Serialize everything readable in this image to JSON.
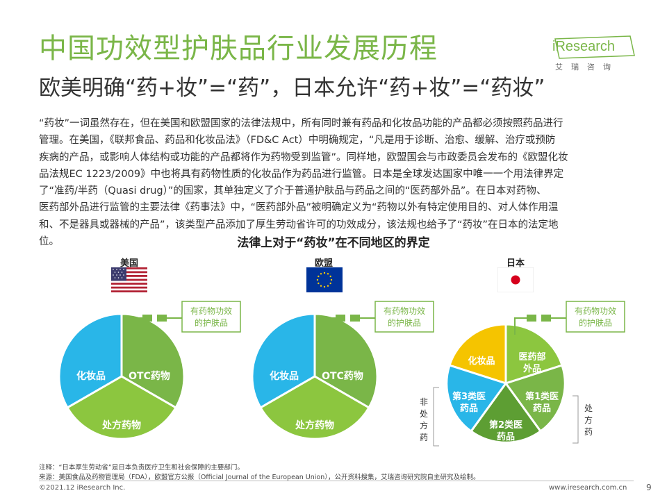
{
  "title": "中国功效型护肤品行业发展历程",
  "subtitle": "欧美明确“药+妆”=“药”，日本允许“药+妆”=“药妆”",
  "logo": {
    "brand": "iResearch",
    "cn": "艾瑞咨询"
  },
  "body_lines": [
    "“药妆”一词虽然存在，但在美国和欧盟国家的法律法规中，所有同时兼有药品和化妆品功能的产品都必须按照药品进行",
    "管理。在美国，《联邦食品、药品和化妆品法》（FD&C Act）中明确规定，“凡是用于诊断、治愈、缓解、治疗或预防",
    "疾病的产品，或影响人体结构或功能的产品都将作为药物受到监管”。同样地，欧盟国会与市政委员会发布的《欧盟化妆",
    "品法规EC 1223/2009》中也将具有药物性质的化妆品作为药品进行监管。日本是全球发达国家中唯一一个用法律界定",
    "了“准药/半药（Quasi drug）”的国家，其单独定义了介于普通护肤品与药品之间的“医药部外品”。在日本对药物、",
    "医药部外品进行监管的主要法律《药事法》中，“医药部外品”被明确定义为“药物以外有特定使用目的、对人体作用温",
    "和、不是器具或器械的产品”，该类型产品添加了厚生劳动省许可的功效成分，该法规也给予了“药妆”在日本的法定地",
    "位。"
  ],
  "chart_title": "法律上对于“药妆”在不同地区的界定",
  "regions": [
    {
      "name": "美国",
      "flag": "us-flag-icon",
      "callout": [
        "有药物功效",
        "的护肤品"
      ],
      "segments": [
        "化妆品",
        "OTC药物",
        "处方药物"
      ]
    },
    {
      "name": "欧盟",
      "flag": "eu-flag-icon",
      "callout": [
        "有药物功效",
        "的护肤品"
      ],
      "segments": [
        "化妆品",
        "OTC药物",
        "处方药物"
      ]
    },
    {
      "name": "日本",
      "flag": "japan-flag-icon",
      "callout": [
        "有药物功效",
        "的护肤品"
      ],
      "segments": [
        "化妆品",
        "医药部外品",
        "第1类医药品",
        "第2类医药品",
        "第3类医药品"
      ],
      "left_bracket": "非处方药",
      "right_bracket": "处方药"
    }
  ],
  "colors": {
    "green": "#7ab648",
    "blue": "#29b6e8",
    "yellow": "#f5c400",
    "dark_green": "#5d9e33",
    "title_green": "#7ab648"
  },
  "notes": [
    "注释：“日本厚生劳动省”是日本负责医疗卫生和社会保障的主要部门。",
    "来源：美国食品及药物管理局（FDA），欧盟官方公报（Official Journal of the European Union），公开资料搜集，艾瑞咨询研究院自主研究及绘制。"
  ],
  "footer": {
    "copyright": "©2021.12 iResearch Inc.",
    "site": "www.iresearch.com.cn",
    "page": "9"
  }
}
